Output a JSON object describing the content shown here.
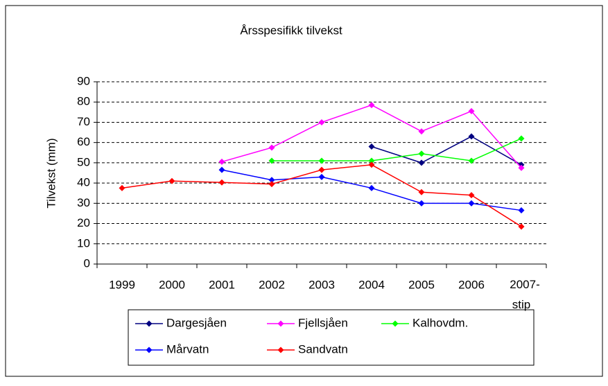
{
  "chart_data": {
    "type": "line",
    "title": "Årsspesifikk tilvekst",
    "y_label": "Tilvekst (mm)",
    "categories": [
      "1999",
      "2000",
      "2001",
      "2002",
      "2003",
      "2004",
      "2005",
      "2006",
      "2007-stip"
    ],
    "series": [
      {
        "name": "Dargesjåen",
        "color": "#000080",
        "values": [
          null,
          null,
          null,
          null,
          null,
          58,
          50,
          63,
          49
        ]
      },
      {
        "name": "Fjellsjåen",
        "color": "#ff00ff",
        "values": [
          null,
          null,
          50.5,
          57.5,
          70,
          78.5,
          65.5,
          75.5,
          47.5
        ]
      },
      {
        "name": "Kalhovdm.",
        "color": "#00ff00",
        "values": [
          null,
          null,
          null,
          51,
          51,
          51,
          54.5,
          51,
          62
        ]
      },
      {
        "name": "Mårvatn",
        "color": "#0000ff",
        "values": [
          null,
          null,
          46.5,
          41.5,
          43,
          37.5,
          30,
          30,
          26.5
        ]
      },
      {
        "name": "Sandvatn",
        "color": "#ff0000",
        "values": [
          37.5,
          41,
          40.3,
          39.5,
          46.5,
          49,
          35.5,
          34,
          18.5
        ]
      }
    ],
    "ylim": [
      0,
      90
    ],
    "yticks": [
      0,
      10,
      20,
      30,
      40,
      50,
      60,
      70,
      80,
      90
    ],
    "grid": true
  }
}
